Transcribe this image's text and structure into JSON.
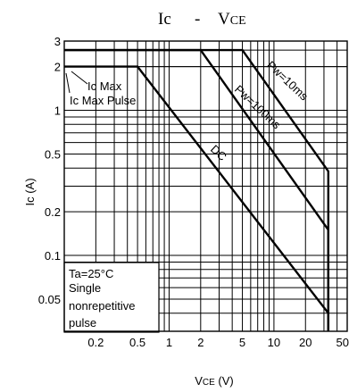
{
  "chart_data": {
    "type": "line",
    "title_main": "Ic",
    "title_dash": "-",
    "title_vce_main": "V",
    "title_vce_sub": "CE",
    "ylabel_main": "Ic",
    "ylabel_unit": "(A)",
    "xlabel_main": "V",
    "xlabel_sub": "CE",
    "xlabel_unit": "(V)",
    "x_scale": "log",
    "y_scale": "log",
    "xlim": [
      0.1,
      50
    ],
    "ylim": [
      0.03,
      3
    ],
    "x_ticks": [
      {
        "value": 0.2,
        "label": "0.2"
      },
      {
        "value": 0.5,
        "label": "0.5"
      },
      {
        "value": 1,
        "label": "1"
      },
      {
        "value": 2,
        "label": "2"
      },
      {
        "value": 5,
        "label": "5"
      },
      {
        "value": 10,
        "label": "10"
      },
      {
        "value": 20,
        "label": "20"
      },
      {
        "value": 50,
        "label": "50"
      }
    ],
    "y_ticks": [
      {
        "value": 3,
        "label": "3"
      },
      {
        "value": 2,
        "label": "2"
      },
      {
        "value": 1,
        "label": "1"
      },
      {
        "value": 0.5,
        "label": "0.5"
      },
      {
        "value": 0.2,
        "label": "0.2"
      },
      {
        "value": 0.1,
        "label": "0.1"
      },
      {
        "value": 0.05,
        "label": "0.05"
      }
    ],
    "grid": true,
    "hline_ic_max": 2.6,
    "hline_ic_max_pulse": 2.0,
    "series": [
      {
        "name": "Pw=10ms",
        "points": [
          [
            0.1,
            2.6
          ],
          [
            5,
            2.6
          ],
          [
            33,
            0.38
          ],
          [
            33,
            0.03
          ]
        ]
      },
      {
        "name": "Pw=100ms",
        "points": [
          [
            0.1,
            2.6
          ],
          [
            2,
            2.6
          ],
          [
            33,
            0.15
          ],
          [
            33,
            0.03
          ]
        ]
      },
      {
        "name": "DC",
        "points": [
          [
            0.1,
            2.0
          ],
          [
            0.5,
            2.0
          ],
          [
            33,
            0.04
          ],
          [
            33,
            0.03
          ]
        ]
      }
    ],
    "annotations": [
      {
        "text": "Ic Max"
      },
      {
        "text": "Ic Max Pulse"
      }
    ],
    "note_lines": [
      "Ta=25°C",
      "Single",
      "nonrepetitive",
      "pulse"
    ]
  }
}
